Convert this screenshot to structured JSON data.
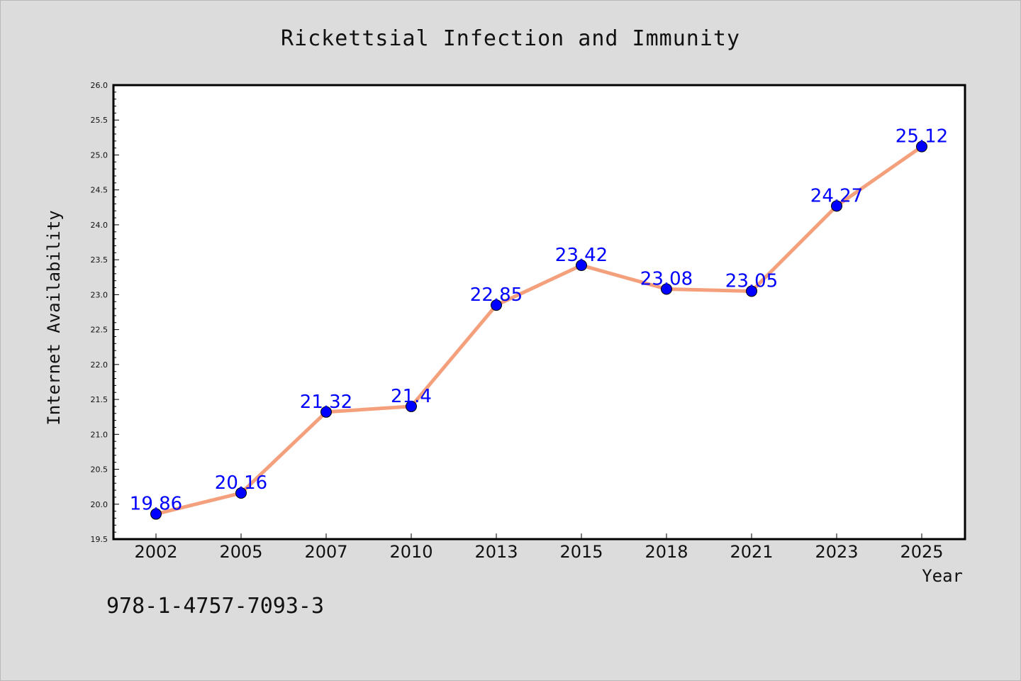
{
  "chart_data": {
    "type": "line",
    "title": "Rickettsial Infection and Immunity",
    "xlabel": "Year",
    "ylabel": "Internet Availability",
    "categories": [
      "2002",
      "2005",
      "2007",
      "2010",
      "2013",
      "2015",
      "2018",
      "2021",
      "2023",
      "2025"
    ],
    "series": [
      {
        "values": [
          19.86,
          20.16,
          21.32,
          21.4,
          22.85,
          23.42,
          23.08,
          23.05,
          24.27,
          25.12
        ],
        "labels": [
          "19.86",
          "20.16",
          "21.32",
          "21.4",
          "22.85",
          "23.42",
          "23.08",
          "23.05",
          "24.27",
          "25.12"
        ]
      }
    ],
    "ylim": [
      19.5,
      26.0
    ],
    "yticks": [
      "19.5",
      "20.0",
      "20.5",
      "21.0",
      "21.5",
      "22.0",
      "22.5",
      "23.0",
      "23.5",
      "24.0",
      "24.5",
      "25.0",
      "25.5",
      "26.0"
    ],
    "grid": false,
    "legend": "none",
    "colors": {
      "line": "#f4a07c",
      "marker": "#0000ff",
      "label": "#0000ff"
    }
  },
  "footer": {
    "isbn": "978-1-4757-7093-3"
  }
}
